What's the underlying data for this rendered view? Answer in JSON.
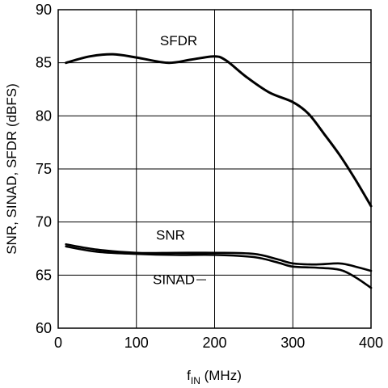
{
  "chart_data": {
    "type": "line",
    "title": "",
    "xlabel_main": "f",
    "xlabel_sub": "IN",
    "xlabel_rest": " (MHz)",
    "ylabel": "SNR, SINAD, SFDR (dBFS)",
    "xlim": [
      0,
      400
    ],
    "ylim": [
      60,
      90
    ],
    "xticks": [
      0,
      100,
      200,
      300,
      400
    ],
    "yticks": [
      60,
      65,
      70,
      75,
      80,
      85,
      90
    ],
    "grid": true,
    "series": [
      {
        "name": "SFDR",
        "x": [
          10,
          40,
          70,
          100,
          140,
          170,
          200,
          215,
          240,
          270,
          300,
          320,
          340,
          360,
          380,
          400
        ],
        "y": [
          85.0,
          85.6,
          85.8,
          85.5,
          85.0,
          85.3,
          85.6,
          85.2,
          83.7,
          82.2,
          81.3,
          80.2,
          78.3,
          76.3,
          74.0,
          71.5
        ]
      },
      {
        "name": "SNR",
        "x": [
          10,
          50,
          100,
          150,
          200,
          250,
          280,
          300,
          330,
          360,
          380,
          400
        ],
        "y": [
          67.9,
          67.4,
          67.1,
          67.1,
          67.1,
          67.0,
          66.5,
          66.1,
          66.0,
          66.1,
          65.8,
          65.4
        ]
      },
      {
        "name": "SINAD",
        "x": [
          10,
          50,
          100,
          150,
          200,
          250,
          280,
          300,
          330,
          360,
          380,
          400
        ],
        "y": [
          67.7,
          67.2,
          67.0,
          66.9,
          66.9,
          66.7,
          66.2,
          65.8,
          65.7,
          65.5,
          64.8,
          63.8
        ]
      }
    ]
  }
}
